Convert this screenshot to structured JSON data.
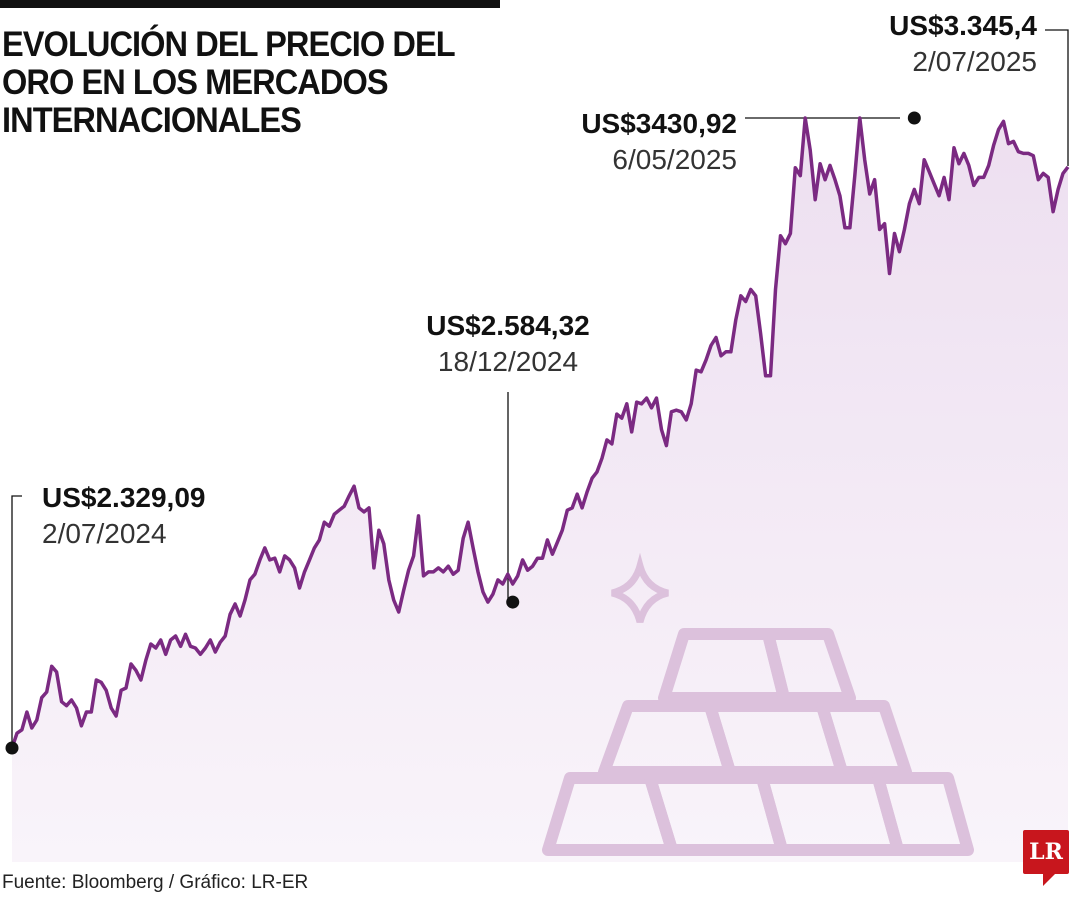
{
  "title": "EVOLUCIÓN DEL PRECIO DEL ORO EN LOS MERCADOS INTERNACIONALES",
  "source": "Fuente: Bloomberg / Gráfico: LR-ER",
  "logo_text": "LR",
  "colors": {
    "line": "#7b2a82",
    "fill": "#f0e4f2",
    "icon": "#dcc1dc",
    "logo": "#c8161d"
  },
  "icons": [
    "gold-bars-icon",
    "sparkle-icon"
  ],
  "chart_data": {
    "type": "area",
    "title": "EVOLUCIÓN DEL PRECIO DEL ORO EN LOS MERCADOS INTERNACIONALES",
    "xlabel": "",
    "ylabel": "",
    "x_range": [
      "2/07/2024",
      "2/07/2025"
    ],
    "grid": false,
    "legend": "none",
    "unit": "US$",
    "annotations": [
      {
        "label": "US$2.329,09",
        "date": "2/07/2024",
        "value": 2329.09,
        "index": 0
      },
      {
        "label": "US$2.584,32",
        "date": "18/12/2024",
        "value": 2584.32,
        "index": 101
      },
      {
        "label": "US$3430,92",
        "date": "6/05/2025",
        "value": 3430.92,
        "index": 182
      },
      {
        "label": "US$3.345,4",
        "date": "2/07/2025",
        "value": 3345.4,
        "index": 236
      }
    ],
    "values": [
      2329.09,
      2355,
      2361,
      2392,
      2364,
      2378,
      2417,
      2427,
      2472,
      2462,
      2410,
      2403,
      2413,
      2399,
      2368,
      2392,
      2392,
      2448,
      2444,
      2430,
      2399,
      2385,
      2430,
      2434,
      2476,
      2465,
      2448,
      2483,
      2511,
      2504,
      2518,
      2493,
      2518,
      2525,
      2507,
      2528,
      2507,
      2504,
      2493,
      2504,
      2518,
      2497,
      2514,
      2525,
      2563,
      2581,
      2560,
      2588,
      2623,
      2633,
      2658,
      2679,
      2658,
      2661,
      2637,
      2665,
      2658,
      2644,
      2609,
      2637,
      2658,
      2679,
      2693,
      2724,
      2717,
      2738,
      2745,
      2752,
      2770,
      2787,
      2749,
      2742,
      2749,
      2644,
      2710,
      2686,
      2623,
      2588,
      2567,
      2605,
      2640,
      2665,
      2735,
      2630,
      2637,
      2637,
      2644,
      2637,
      2647,
      2633,
      2640,
      2696,
      2724,
      2679,
      2637,
      2602,
      2584.32,
      2598,
      2623,
      2616,
      2633,
      2616,
      2630,
      2658,
      2640,
      2647,
      2661,
      2661,
      2693,
      2668,
      2689,
      2710,
      2745,
      2749,
      2773,
      2749,
      2777,
      2801,
      2812,
      2836,
      2868,
      2861,
      2913,
      2906,
      2931,
      2882,
      2934,
      2931,
      2941,
      2924,
      2941,
      2886,
      2858,
      2917,
      2920,
      2917,
      2903,
      2931,
      2990,
      2987,
      3008,
      3033,
      3047,
      3015,
      3022,
      3022,
      3078,
      3120,
      3110,
      3131,
      3120,
      3054,
      2980,
      2980,
      3131,
      3225,
      3211,
      3229,
      3344,
      3330,
      3431,
      3375,
      3288,
      3351,
      3323,
      3348,
      3323,
      3295,
      3239,
      3239,
      3330,
      3430.92,
      3358,
      3298,
      3323,
      3236,
      3246,
      3159,
      3229,
      3197,
      3236,
      3281,
      3306,
      3281,
      3358,
      3337,
      3316,
      3295,
      3327,
      3288,
      3379,
      3351,
      3369,
      3348,
      3313,
      3327,
      3327,
      3348,
      3383,
      3411,
      3425,
      3386,
      3390,
      3372,
      3369,
      3369,
      3365,
      3323,
      3334,
      3327,
      3267,
      3306,
      3334,
      3345.4
    ]
  }
}
